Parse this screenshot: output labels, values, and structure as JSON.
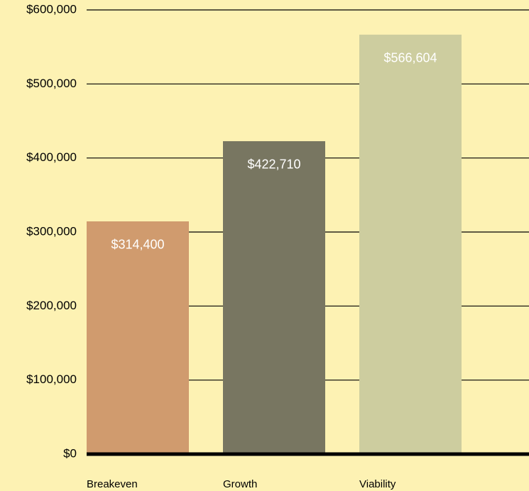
{
  "chart_data": {
    "type": "bar",
    "categories": [
      "Breakeven",
      "Growth",
      "Viability"
    ],
    "values": [
      314400,
      422710,
      566604
    ],
    "value_labels": [
      "$314,400",
      "$422,710",
      "$566,604"
    ],
    "colors": [
      "#d09b6e",
      "#787661",
      "#cdcd9f"
    ],
    "ylim": [
      0,
      600000
    ],
    "yticks": [
      {
        "value": 0,
        "label": "$0"
      },
      {
        "value": 100000,
        "label": "$100,000"
      },
      {
        "value": 200000,
        "label": "$200,000"
      },
      {
        "value": 300000,
        "label": "$300,000"
      },
      {
        "value": 400000,
        "label": "$400,000"
      },
      {
        "value": 500000,
        "label": "$500,000"
      },
      {
        "value": 600000,
        "label": "$600,000"
      }
    ],
    "grid": true
  }
}
